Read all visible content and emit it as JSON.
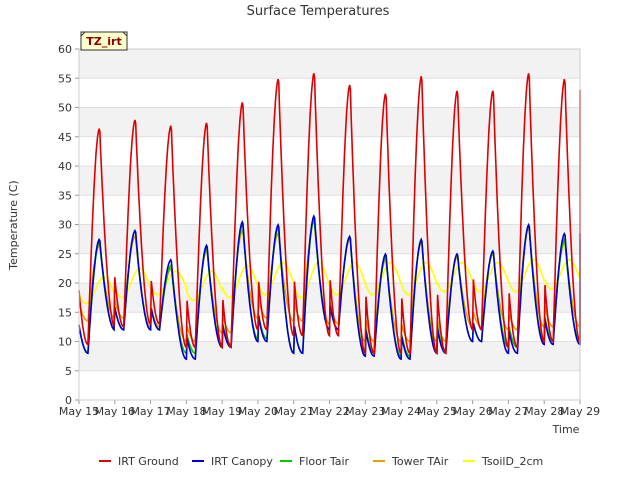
{
  "chart_data": {
    "type": "line",
    "title": "Surface Temperatures",
    "xlabel": "Time",
    "ylabel": "Temperature (C)",
    "badge": "TZ_irt",
    "x_tick_labels": [
      "May 15",
      "May 16",
      "May 17",
      "May 18",
      "May 19",
      "May 20",
      "May 21",
      "May 22",
      "May 23",
      "May 24",
      "May 25",
      "May 26",
      "May 27",
      "May 28",
      "May 29"
    ],
    "y_ticks": [
      0,
      5,
      10,
      15,
      20,
      25,
      30,
      35,
      40,
      45,
      50,
      55,
      60
    ],
    "xlim": [
      15,
      29
    ],
    "ylim": [
      0,
      60
    ],
    "grid": "horizontal-bands",
    "legend_position": "bottom",
    "daily_days": [
      15,
      16,
      17,
      18,
      19,
      20,
      21,
      22,
      23,
      24,
      25,
      26,
      27,
      28
    ],
    "series": [
      {
        "name": "IRT Ground",
        "color": "#dd0000",
        "daily_min": [
          9.5,
          12.5,
          13,
          9,
          9,
          12,
          11,
          11,
          8,
          8,
          8,
          12,
          9,
          10
        ],
        "daily_max": [
          46.5,
          48,
          47,
          47.5,
          51,
          55,
          56,
          54,
          52.5,
          55.5,
          53,
          53,
          56,
          55
        ],
        "end_value": 53
      },
      {
        "name": "IRT Canopy",
        "color": "#0000cc",
        "daily_min": [
          8,
          12,
          12,
          7,
          9,
          10,
          8,
          12,
          7.5,
          7,
          8,
          10,
          8,
          9.5
        ],
        "daily_max": [
          27.5,
          29,
          24,
          26.5,
          30.5,
          30,
          31.5,
          28,
          25,
          27.5,
          25,
          25.5,
          30,
          28.5
        ],
        "end_value": 28.5
      },
      {
        "name": "Floor Tair",
        "color": "#00cc00",
        "daily_min": [
          8,
          12,
          12,
          8,
          9.5,
          10.5,
          8,
          12,
          8,
          7.5,
          8.5,
          10,
          9,
          10
        ],
        "daily_max": [
          27,
          29,
          23,
          26,
          30,
          29.5,
          31,
          28,
          24.5,
          27.5,
          25,
          25.5,
          30,
          27.5
        ],
        "end_value": 27.5
      },
      {
        "name": "Tower TAir",
        "color": "#e69f00",
        "daily_min": [
          13.5,
          14,
          12.5,
          10,
          11.5,
          14,
          13.5,
          13,
          10,
          10,
          10,
          12.5,
          12,
          12.5
        ],
        "daily_max": [
          26.5,
          28,
          22.5,
          25.5,
          29,
          28.5,
          30.5,
          27.5,
          24,
          27,
          24.5,
          25,
          29.5,
          27
        ],
        "end_value": 27
      },
      {
        "name": "TsoilD_2cm",
        "color": "#ffff00",
        "daily_min": [
          16.5,
          17.5,
          18,
          17,
          17.5,
          18,
          17.5,
          18,
          18,
          18,
          18.5,
          18.5,
          18.5,
          19
        ],
        "daily_max": [
          21,
          22.5,
          22,
          22,
          23,
          23.5,
          23.5,
          23.5,
          23.5,
          23.5,
          23.5,
          23.5,
          24,
          24
        ],
        "end_value": 24
      }
    ]
  }
}
